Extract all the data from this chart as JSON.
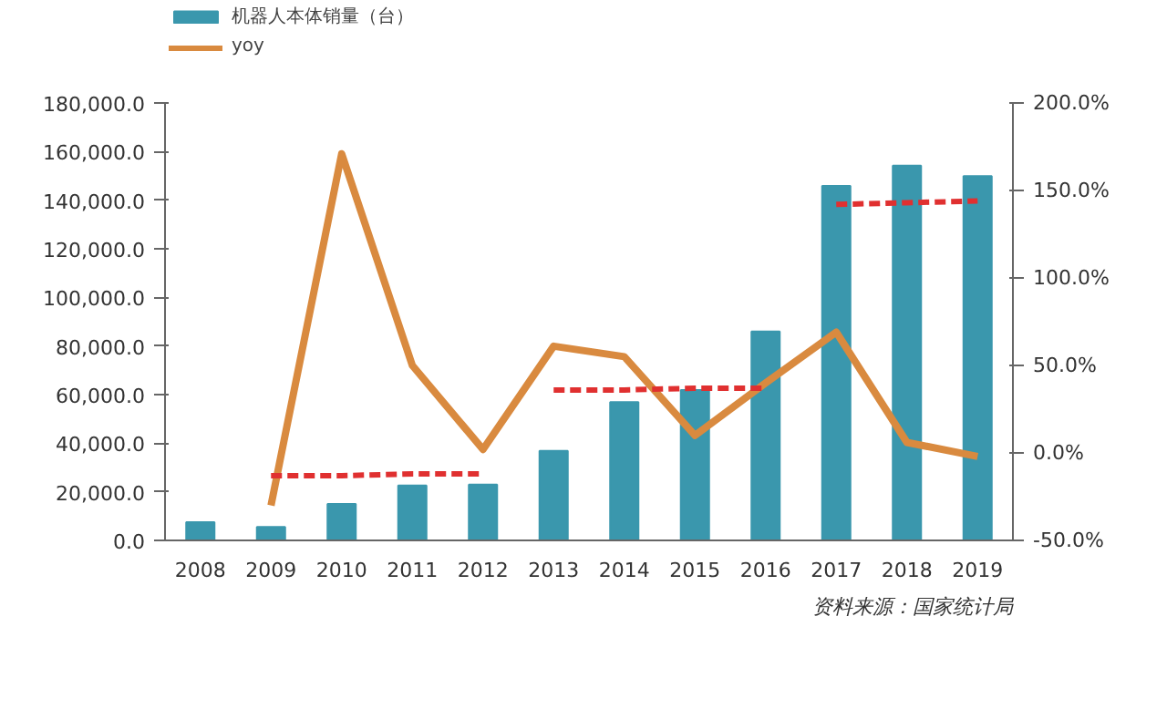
{
  "chart_data": {
    "type": "bar",
    "categories": [
      "2008",
      "2009",
      "2010",
      "2011",
      "2012",
      "2013",
      "2014",
      "2015",
      "2016",
      "2017",
      "2018",
      "2019"
    ],
    "series": [
      {
        "name": "机器人本体销量（台）",
        "color": "#3a97ad",
        "values": [
          7500,
          5500,
          15000,
          22600,
          23000,
          36800,
          56900,
          61900,
          86000,
          145900,
          154200,
          149900
        ]
      },
      {
        "name": "yoy",
        "type": "line",
        "axis": "y2",
        "color": "#d98a3f",
        "values": [
          null,
          -30,
          171,
          50,
          2,
          61,
          55,
          10,
          40,
          69,
          6,
          -2
        ]
      },
      {
        "type": "line",
        "axis": "y2",
        "color": "#e03030",
        "line_style": "dashed",
        "values": [
          null,
          -13,
          -13,
          -12,
          -12,
          null,
          null,
          null,
          null,
          null,
          null,
          null
        ]
      },
      {
        "type": "line",
        "axis": "y2",
        "color": "#e03030",
        "line_style": "dashed",
        "values": [
          null,
          null,
          null,
          null,
          null,
          36,
          36,
          37,
          37,
          null,
          null,
          null
        ]
      },
      {
        "type": "line",
        "axis": "y2",
        "color": "#e03030",
        "line_style": "dashed",
        "values": [
          null,
          null,
          null,
          null,
          null,
          null,
          null,
          null,
          null,
          142,
          143,
          144
        ]
      }
    ],
    "ylim": [
      0,
      180000
    ],
    "yticks": [
      {
        "value": 0,
        "label": "0.0"
      },
      {
        "value": 20000,
        "label": "20,000.0"
      },
      {
        "value": 40000,
        "label": "40,000.0"
      },
      {
        "value": 60000,
        "label": "60,000.0"
      },
      {
        "value": 80000,
        "label": "80,000.0"
      },
      {
        "value": 100000,
        "label": "100,000.0"
      },
      {
        "value": 120000,
        "label": "120,000.0"
      },
      {
        "value": 140000,
        "label": "140,000.0"
      },
      {
        "value": 160000,
        "label": "160,000.0"
      },
      {
        "value": 180000,
        "label": "180,000.0"
      }
    ],
    "y2lim": [
      -50,
      200
    ],
    "y2ticks": [
      {
        "value": -50,
        "label": "-50.0%"
      },
      {
        "value": 0,
        "label": "0.0%"
      },
      {
        "value": 50,
        "label": "50.0%"
      },
      {
        "value": 100,
        "label": "100.0%"
      },
      {
        "value": 150,
        "label": "150.0%"
      },
      {
        "value": 200,
        "label": "200.0%"
      }
    ],
    "annotations": [
      "资料来源：国家统计局"
    ],
    "legend": "top left",
    "grid": false
  }
}
